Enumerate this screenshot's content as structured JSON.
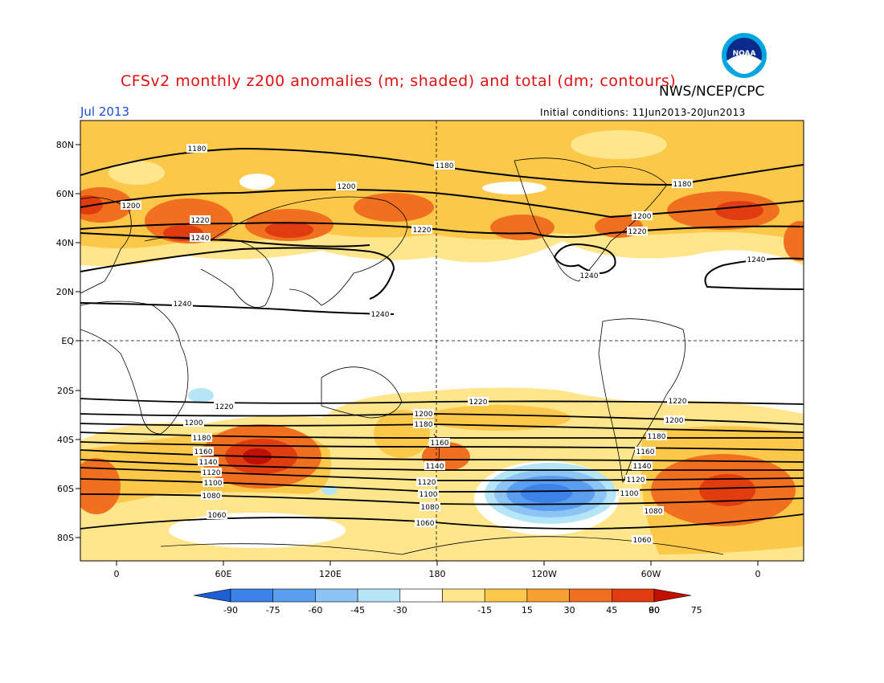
{
  "title": "CFSv2 monthly z200 anomalies (m; shaded) and total (dm; contours)",
  "agency": "NWS/NCEP/CPC",
  "month": "Jul 2013",
  "initial_conditions": "Initial conditions: 11Jun2013-20Jun2013",
  "logo_text": "NOAA",
  "lat_labels": [
    "80N",
    "60N",
    "40N",
    "20N",
    "EQ",
    "20S",
    "40S",
    "60S",
    "80S"
  ],
  "lon_labels": [
    "0",
    "60E",
    "120E",
    "180",
    "120W",
    "60W",
    "0"
  ],
  "colorbar_ticks": [
    "-90",
    "-75",
    "-60",
    "-45",
    "-30",
    "-15",
    "15",
    "30",
    "45",
    "60",
    "75",
    "90"
  ],
  "colorbar_colors": [
    "#1e5fd6",
    "#3c82e8",
    "#5a9ef0",
    "#8cc4f6",
    "#b4e6f8",
    "#ffffff",
    "#ffe68c",
    "#fcc84a",
    "#f8a030",
    "#f07020",
    "#e03c10",
    "#c01000"
  ],
  "contour_labels": [
    "1180",
    "1180",
    "1200",
    "1180",
    "1200",
    "1220",
    "1240",
    "1220",
    "1200",
    "1220",
    "1240",
    "1240",
    "1240",
    "1240",
    "1220",
    "1220",
    "1220",
    "1200",
    "1180",
    "1160",
    "1140",
    "1120",
    "1100",
    "1080",
    "1060",
    "1200",
    "1180",
    "1160",
    "1140",
    "1120",
    "1100",
    "1080",
    "1060",
    "1200",
    "1180",
    "1160",
    "1140",
    "1120",
    "1100",
    "1080",
    "1060"
  ]
}
